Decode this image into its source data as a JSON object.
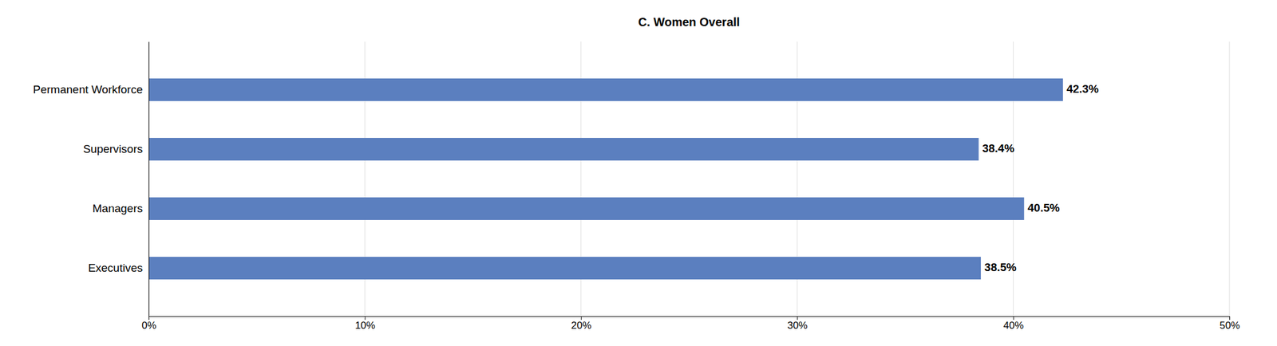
{
  "chart_data": {
    "type": "bar",
    "orientation": "horizontal",
    "title": "C. Women Overall",
    "categories": [
      "Permanent Workforce",
      "Supervisors",
      "Managers",
      "Executives"
    ],
    "values": [
      42.3,
      38.4,
      40.5,
      38.5
    ],
    "value_labels": [
      "42.3%",
      "38.4%",
      "40.5%",
      "38.5%"
    ],
    "data_labels": true,
    "color": "#5B7FBF",
    "xlim": [
      0,
      50
    ],
    "xticks": [
      {
        "value": 0,
        "label": "0%"
      },
      {
        "value": 10,
        "label": "10%"
      },
      {
        "value": 20,
        "label": "20%"
      },
      {
        "value": 30,
        "label": "30%"
      },
      {
        "value": 40,
        "label": "40%"
      },
      {
        "value": 50,
        "label": "50%"
      }
    ],
    "grid": true
  }
}
